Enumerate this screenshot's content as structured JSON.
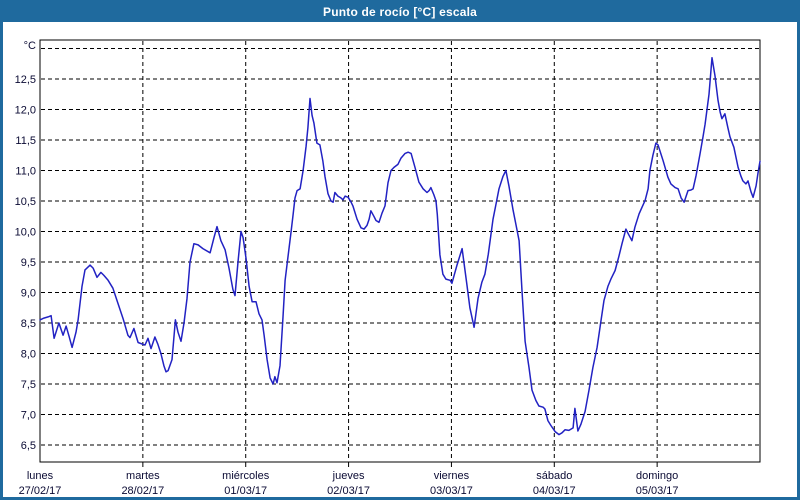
{
  "window": {
    "title": "Punto de rocío [°C] escala"
  },
  "colors": {
    "frame_blue": "#1f6a9e",
    "title_text": "#ffffff",
    "plot_background": "#ffffff",
    "grid_color": "#000000",
    "axis_border": "#000000",
    "line_color": "#2222c3",
    "label_text": "#0a0a33"
  },
  "chart_data": {
    "type": "line",
    "title": "Punto de rocío [°C] escala",
    "grid": "dashed",
    "legend": "none",
    "y_axis": {
      "unit_label": "°C",
      "min": 6.5,
      "max": 13.0,
      "tick_step": 0.5,
      "decimal_separator": ",",
      "tick_labels": [
        "12,5",
        "12,0",
        "11,5",
        "11,0",
        "10,5",
        "10,0",
        "9,5",
        "9,0",
        "8,5",
        "8,0",
        "7,5",
        "7,0",
        "6,5"
      ],
      "tick_values": [
        12.5,
        12.0,
        11.5,
        11.0,
        10.5,
        10.0,
        9.5,
        9.0,
        8.5,
        8.0,
        7.5,
        7.0,
        6.5
      ]
    },
    "x_axis": {
      "hours_total": 168,
      "day_width_hours": 24,
      "days": [
        {
          "name": "lunes",
          "date": "27/02/17"
        },
        {
          "name": "martes",
          "date": "28/02/17"
        },
        {
          "name": "miércoles",
          "date": "01/03/17"
        },
        {
          "name": "jueves",
          "date": "02/03/17"
        },
        {
          "name": "viernes",
          "date": "03/03/17"
        },
        {
          "name": "sábado",
          "date": "04/03/17"
        },
        {
          "name": "domingo",
          "date": "05/03/17"
        }
      ]
    },
    "series": [
      {
        "name": "Punto de rocío [°C]",
        "color": "#2222c3",
        "points": [
          [
            0,
            8.55
          ],
          [
            0.9,
            8.58
          ],
          [
            1.9,
            8.6
          ],
          [
            2.6,
            8.62
          ],
          [
            3.3,
            8.25
          ],
          [
            4.4,
            8.5
          ],
          [
            5.4,
            8.3
          ],
          [
            6.1,
            8.45
          ],
          [
            6.8,
            8.28
          ],
          [
            7.5,
            8.1
          ],
          [
            8.4,
            8.35
          ],
          [
            8.9,
            8.55
          ],
          [
            9.8,
            9.1
          ],
          [
            10.5,
            9.37
          ],
          [
            11.7,
            9.45
          ],
          [
            12.4,
            9.4
          ],
          [
            13.3,
            9.25
          ],
          [
            14.2,
            9.33
          ],
          [
            14.9,
            9.28
          ],
          [
            15.9,
            9.2
          ],
          [
            17.0,
            9.07
          ],
          [
            18.2,
            8.82
          ],
          [
            19.4,
            8.57
          ],
          [
            20.5,
            8.3
          ],
          [
            21.0,
            8.26
          ],
          [
            21.9,
            8.41
          ],
          [
            22.9,
            8.18
          ],
          [
            24.0,
            8.15
          ],
          [
            24.5,
            8.14
          ],
          [
            25.2,
            8.25
          ],
          [
            25.9,
            8.08
          ],
          [
            26.8,
            8.27
          ],
          [
            27.5,
            8.15
          ],
          [
            28.2,
            8.0
          ],
          [
            28.9,
            7.8
          ],
          [
            29.4,
            7.7
          ],
          [
            29.9,
            7.72
          ],
          [
            30.8,
            7.9
          ],
          [
            31.3,
            8.3
          ],
          [
            31.6,
            8.55
          ],
          [
            32.2,
            8.35
          ],
          [
            32.9,
            8.2
          ],
          [
            33.6,
            8.5
          ],
          [
            34.3,
            8.9
          ],
          [
            35.0,
            9.5
          ],
          [
            35.9,
            9.8
          ],
          [
            36.9,
            9.78
          ],
          [
            38.0,
            9.72
          ],
          [
            39.7,
            9.65
          ],
          [
            40.6,
            9.9
          ],
          [
            41.3,
            10.08
          ],
          [
            42.2,
            9.85
          ],
          [
            43.2,
            9.7
          ],
          [
            44.1,
            9.4
          ],
          [
            45.0,
            9.05
          ],
          [
            45.5,
            8.95
          ],
          [
            46.2,
            9.5
          ],
          [
            46.9,
            10.0
          ],
          [
            47.4,
            9.9
          ],
          [
            48.1,
            9.55
          ],
          [
            48.8,
            9.1
          ],
          [
            49.5,
            8.85
          ],
          [
            50.4,
            8.85
          ],
          [
            51.1,
            8.65
          ],
          [
            51.8,
            8.55
          ],
          [
            52.3,
            8.3
          ],
          [
            53.0,
            7.9
          ],
          [
            53.7,
            7.6
          ],
          [
            54.4,
            7.5
          ],
          [
            54.8,
            7.62
          ],
          [
            55.3,
            7.52
          ],
          [
            56.0,
            7.8
          ],
          [
            56.7,
            8.6
          ],
          [
            57.2,
            9.2
          ],
          [
            57.9,
            9.6
          ],
          [
            58.6,
            10.0
          ],
          [
            59.0,
            10.25
          ],
          [
            59.5,
            10.55
          ],
          [
            60.0,
            10.67
          ],
          [
            60.7,
            10.7
          ],
          [
            61.4,
            11.0
          ],
          [
            62.1,
            11.4
          ],
          [
            62.5,
            11.7
          ],
          [
            63.0,
            12.18
          ],
          [
            63.5,
            11.9
          ],
          [
            63.9,
            11.78
          ],
          [
            64.6,
            11.45
          ],
          [
            65.3,
            11.42
          ],
          [
            66.0,
            11.15
          ],
          [
            66.5,
            10.9
          ],
          [
            67.2,
            10.62
          ],
          [
            67.9,
            10.5
          ],
          [
            68.4,
            10.48
          ],
          [
            68.8,
            10.64
          ],
          [
            69.5,
            10.58
          ],
          [
            70.2,
            10.55
          ],
          [
            70.7,
            10.52
          ],
          [
            71.2,
            10.58
          ],
          [
            71.9,
            10.56
          ],
          [
            72.6,
            10.48
          ],
          [
            73.0,
            10.42
          ],
          [
            74.0,
            10.2
          ],
          [
            74.9,
            10.06
          ],
          [
            75.6,
            10.04
          ],
          [
            76.3,
            10.1
          ],
          [
            76.8,
            10.2
          ],
          [
            77.2,
            10.34
          ],
          [
            77.9,
            10.25
          ],
          [
            78.4,
            10.18
          ],
          [
            79.1,
            10.15
          ],
          [
            79.8,
            10.3
          ],
          [
            80.5,
            10.42
          ],
          [
            81.2,
            10.8
          ],
          [
            81.9,
            11.0
          ],
          [
            82.6,
            11.05
          ],
          [
            83.5,
            11.1
          ],
          [
            84.2,
            11.2
          ],
          [
            85.2,
            11.28
          ],
          [
            85.9,
            11.3
          ],
          [
            86.6,
            11.28
          ],
          [
            87.5,
            11.05
          ],
          [
            88.4,
            10.81
          ],
          [
            89.4,
            10.7
          ],
          [
            90.3,
            10.64
          ],
          [
            90.8,
            10.67
          ],
          [
            91.2,
            10.72
          ],
          [
            91.9,
            10.6
          ],
          [
            92.4,
            10.5
          ],
          [
            92.7,
            10.28
          ],
          [
            93.3,
            9.62
          ],
          [
            94.0,
            9.3
          ],
          [
            94.7,
            9.22
          ],
          [
            95.7,
            9.2
          ],
          [
            96.1,
            9.15
          ],
          [
            97.3,
            9.45
          ],
          [
            98.5,
            9.72
          ],
          [
            99.6,
            9.13
          ],
          [
            100.3,
            8.75
          ],
          [
            101.3,
            8.43
          ],
          [
            102.2,
            8.9
          ],
          [
            103.1,
            9.17
          ],
          [
            103.8,
            9.3
          ],
          [
            104.6,
            9.63
          ],
          [
            105.7,
            10.2
          ],
          [
            106.4,
            10.45
          ],
          [
            107.1,
            10.7
          ],
          [
            108.0,
            10.9
          ],
          [
            108.7,
            11.0
          ],
          [
            109.4,
            10.75
          ],
          [
            110.4,
            10.35
          ],
          [
            111.1,
            10.1
          ],
          [
            111.8,
            9.85
          ],
          [
            112.5,
            9.0
          ],
          [
            113.2,
            8.2
          ],
          [
            114.1,
            7.77
          ],
          [
            114.8,
            7.4
          ],
          [
            115.7,
            7.23
          ],
          [
            116.4,
            7.14
          ],
          [
            117.4,
            7.12
          ],
          [
            117.8,
            7.09
          ],
          [
            118.5,
            6.9
          ],
          [
            119.2,
            6.82
          ],
          [
            120.2,
            6.72
          ],
          [
            121.1,
            6.67
          ],
          [
            121.8,
            6.7
          ],
          [
            122.5,
            6.75
          ],
          [
            123.4,
            6.74
          ],
          [
            124.4,
            6.78
          ],
          [
            124.8,
            7.1
          ],
          [
            125.5,
            6.73
          ],
          [
            126.2,
            6.84
          ],
          [
            127.2,
            7.05
          ],
          [
            128.1,
            7.4
          ],
          [
            129.0,
            7.77
          ],
          [
            130.0,
            8.1
          ],
          [
            130.9,
            8.54
          ],
          [
            131.6,
            8.87
          ],
          [
            132.5,
            9.1
          ],
          [
            133.2,
            9.22
          ],
          [
            134.2,
            9.36
          ],
          [
            135.1,
            9.6
          ],
          [
            135.8,
            9.8
          ],
          [
            136.7,
            10.04
          ],
          [
            137.2,
            9.97
          ],
          [
            138.1,
            9.85
          ],
          [
            138.8,
            10.07
          ],
          [
            139.8,
            10.29
          ],
          [
            140.5,
            10.4
          ],
          [
            141.2,
            10.51
          ],
          [
            141.9,
            10.7
          ],
          [
            142.3,
            11.0
          ],
          [
            143.0,
            11.25
          ],
          [
            143.7,
            11.45
          ],
          [
            144.2,
            11.42
          ],
          [
            145.4,
            11.16
          ],
          [
            146.5,
            10.89
          ],
          [
            147.2,
            10.78
          ],
          [
            148.2,
            10.72
          ],
          [
            148.9,
            10.7
          ],
          [
            149.6,
            10.55
          ],
          [
            150.3,
            10.48
          ],
          [
            151.2,
            10.67
          ],
          [
            151.9,
            10.68
          ],
          [
            152.4,
            10.7
          ],
          [
            153.1,
            10.92
          ],
          [
            154.0,
            11.27
          ],
          [
            154.7,
            11.55
          ],
          [
            155.2,
            11.76
          ],
          [
            156.1,
            12.25
          ],
          [
            156.8,
            12.85
          ],
          [
            157.5,
            12.55
          ],
          [
            158.2,
            12.15
          ],
          [
            158.7,
            11.96
          ],
          [
            159.1,
            11.85
          ],
          [
            159.8,
            11.93
          ],
          [
            160.5,
            11.7
          ],
          [
            161.0,
            11.55
          ],
          [
            161.9,
            11.38
          ],
          [
            162.9,
            11.05
          ],
          [
            163.6,
            10.9
          ],
          [
            164.0,
            10.83
          ],
          [
            164.7,
            10.78
          ],
          [
            165.2,
            10.83
          ],
          [
            165.9,
            10.65
          ],
          [
            166.4,
            10.56
          ],
          [
            167.1,
            10.75
          ],
          [
            167.5,
            10.95
          ],
          [
            168.0,
            11.15
          ]
        ]
      }
    ]
  }
}
